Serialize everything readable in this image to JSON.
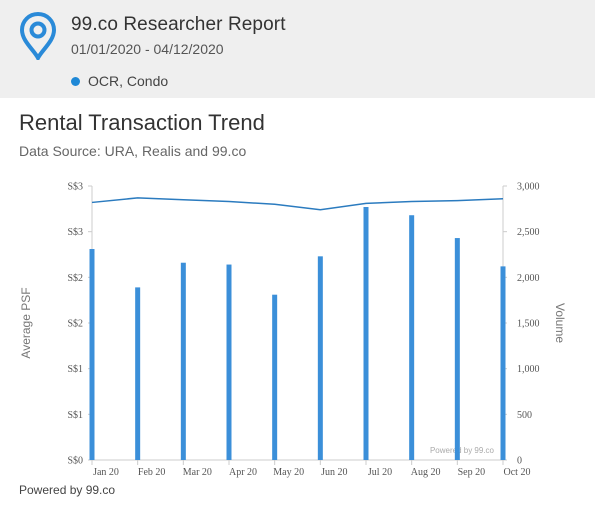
{
  "header": {
    "title": "99.co Researcher Report",
    "date_range": "01/01/2020 - 04/12/2020",
    "filter": {
      "label": "OCR, Condo",
      "color": "#1e88d6"
    },
    "logo_icon": "map-pin-icon",
    "accent_color": "#1e88d6"
  },
  "chart_title": "Rental Transaction Trend",
  "chart_subtitle": "Data Source: URA, Realis and 99.co",
  "footer": "Powered by 99.co",
  "chart_data": {
    "type": "bar+line",
    "title": "Rental Transaction Trend",
    "categories": [
      "Jan 20",
      "Feb 20",
      "Mar 20",
      "Apr 20",
      "May 20",
      "Jun 20",
      "Jul 20",
      "Aug 20",
      "Sep 20",
      "Oct 20"
    ],
    "ylabel_left": "Average PSF",
    "ylabel_right": "Volume",
    "left_ticks": [
      "S$0",
      "S$1",
      "S$1",
      "S$2",
      "S$2",
      "S$3",
      "S$3"
    ],
    "left_lim": [
      0,
      3
    ],
    "right_ticks": [
      "0",
      "500",
      "1,000",
      "1,500",
      "2,000",
      "2,500",
      "3,000"
    ],
    "right_lim": [
      0,
      3000
    ],
    "series": [
      {
        "name": "Volume",
        "kind": "bar",
        "axis": "right",
        "color": "#3b8fd9",
        "values": [
          2310,
          1890,
          2160,
          2140,
          1810,
          2230,
          2770,
          2680,
          2430,
          2120
        ]
      },
      {
        "name": "Average PSF",
        "kind": "line",
        "axis": "left",
        "color": "#2b7bbf",
        "values": [
          2.82,
          2.87,
          2.85,
          2.83,
          2.8,
          2.74,
          2.81,
          2.83,
          2.84,
          2.86
        ]
      }
    ],
    "watermark": "Powered by 99.co",
    "grid": false
  }
}
